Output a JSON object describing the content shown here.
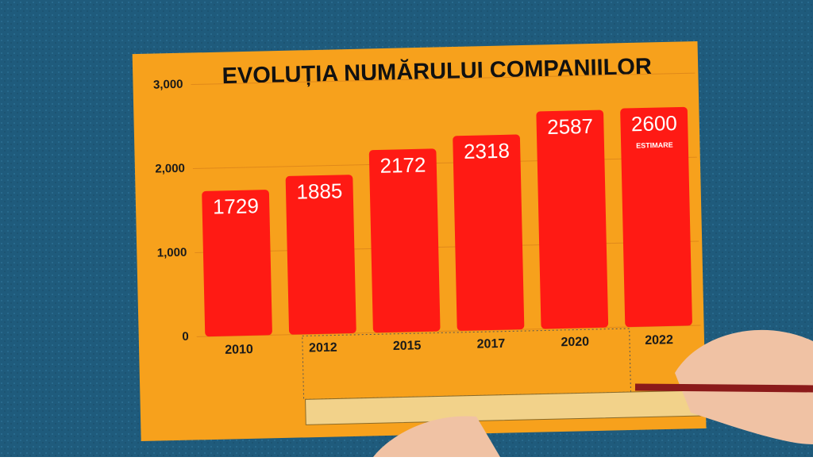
{
  "chart_data": {
    "type": "bar",
    "title": "EVOLUȚIA NUMĂRULUI COMPANIILOR",
    "categories": [
      "2010",
      "2012",
      "2015",
      "2017",
      "2020",
      "2022"
    ],
    "values": [
      1729,
      1885,
      2172,
      2318,
      2587,
      2600
    ],
    "color": "#ff1a14",
    "annotation": "ESTIMARE",
    "ylim": [
      0,
      3000
    ],
    "yticks": [
      0,
      {
        "value": 1000,
        "label": "1,000"
      },
      {
        "value": 2000,
        "label": "2,000"
      },
      {
        "value": 3000,
        "label": "3,000"
      }
    ],
    "grid": true
  }
}
